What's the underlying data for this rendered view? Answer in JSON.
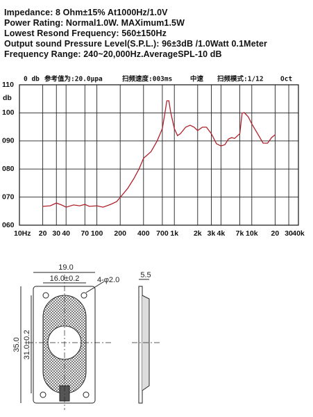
{
  "specs": [
    "Impedance: 8 Ohm±15%  At1000Hz/1.0V",
    "Power Rating: Normal1.0W. MAXimum1.5W",
    "Lowest Resond Frequency: 560±150Hz",
    "Output sound Pressure Level(S.P.L.): 96±3dB /1.0Watt 0.1Meter",
    "Frequency Range: 240~20,000Hz.AverageSPL-10 dB"
  ],
  "chart_data": {
    "type": "line",
    "annotations": [
      "0 db",
      "参考值为:20.0μpa",
      "扫频速度:003ms",
      "中速",
      "扫频模式:1/12",
      "Oct"
    ],
    "y_label": "db",
    "log_x": true,
    "grid": true,
    "x": [
      20,
      25,
      30,
      35,
      40,
      50,
      60,
      70,
      80,
      100,
      120,
      150,
      180,
      200,
      250,
      300,
      350,
      400,
      500,
      600,
      700,
      750,
      800,
      850,
      900,
      1000,
      1100,
      1200,
      1400,
      1600,
      1800,
      2000,
      2300,
      2600,
      3000,
      3500,
      4000,
      4500,
      5000,
      5500,
      6000,
      7000,
      7500,
      8000,
      9000,
      10000,
      12000,
      14000,
      16000,
      18000,
      20000
    ],
    "series": [
      {
        "name": null,
        "color": "#b0202a",
        "values": [
          66.7,
          66.9,
          67.9,
          67.2,
          66.4,
          67.2,
          66.9,
          67.4,
          66.7,
          66.9,
          66.4,
          67.4,
          68.4,
          69.9,
          73.1,
          76.6,
          80.0,
          83.8,
          86.2,
          90.0,
          94.4,
          99.4,
          104.3,
          104.3,
          100,
          94.4,
          91.9,
          92.6,
          94.9,
          95.6,
          94.9,
          93.7,
          94.9,
          94.9,
          92.6,
          89.0,
          88.2,
          88.7,
          90.7,
          91.2,
          90.9,
          92.6,
          99.9,
          100.1,
          98.6,
          96.1,
          92.4,
          89.2,
          89.2,
          91.2,
          92.2
        ]
      }
    ],
    "xlim": [
      10,
      40000
    ],
    "xticks": [
      {
        "value": 10,
        "label": "10Hz"
      },
      20,
      30,
      40,
      70,
      100,
      200,
      400,
      700,
      {
        "value": 1000,
        "label": "1k"
      },
      {
        "value": 2000,
        "label": "2k"
      },
      {
        "value": 3000,
        "label": "3k"
      },
      {
        "value": 4000,
        "label": "4k"
      },
      {
        "value": 7000,
        "label": "7k"
      },
      {
        "value": 10000,
        "label": "10k"
      },
      {
        "value": 20000,
        "label": "20"
      },
      {
        "value": 30000,
        "label": "30"
      },
      {
        "value": 40000,
        "label": "40k"
      }
    ],
    "ylim": [
      60,
      110
    ],
    "yticks": [
      {
        "value": 60,
        "label": "060"
      },
      {
        "value": 70,
        "label": "070"
      },
      {
        "value": 80,
        "label": "080"
      },
      {
        "value": 90,
        "label": "090"
      },
      100,
      110
    ]
  },
  "drawing": {
    "labels": [
      "19.0",
      "16.0±0.2",
      "4-φ2.0",
      "5.5",
      "35.0",
      "31.0±0.2"
    ]
  }
}
